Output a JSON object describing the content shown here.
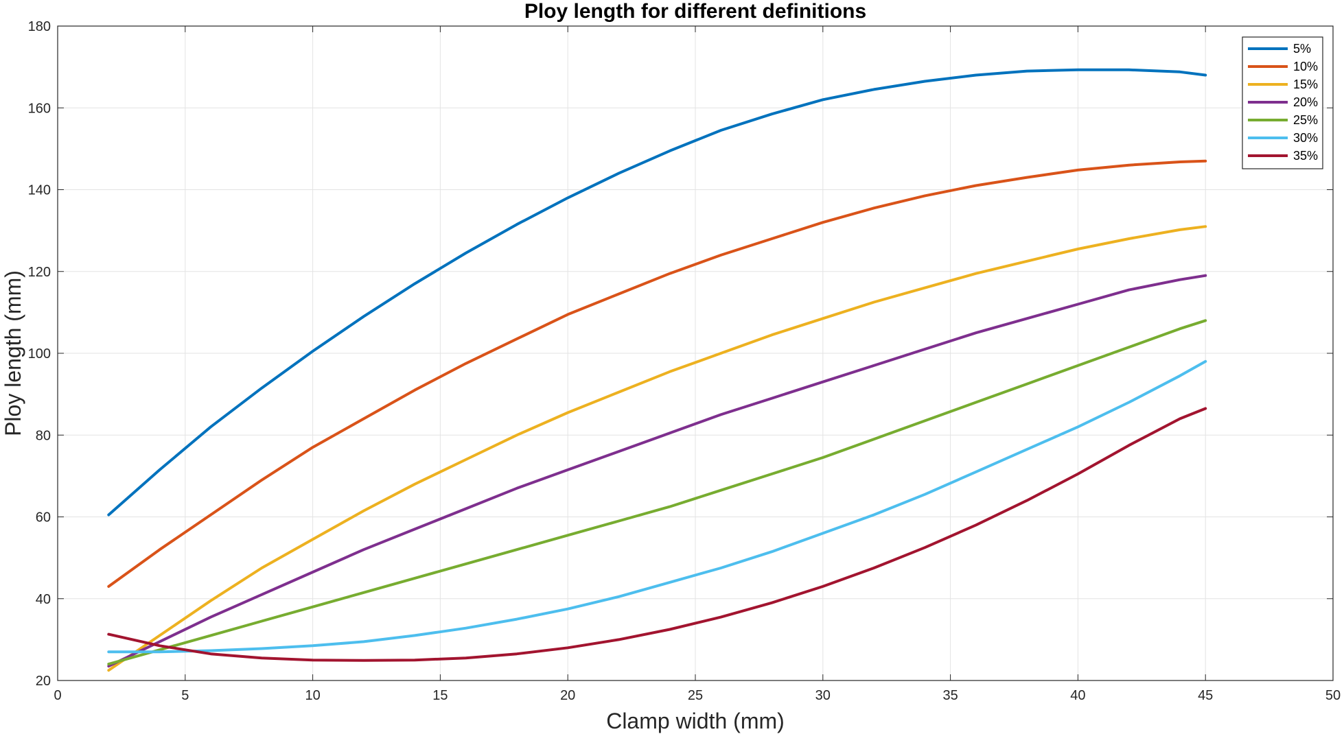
{
  "chart_data": {
    "type": "line",
    "title": "Ploy length for different definitions",
    "xlabel": "Clamp width (mm)",
    "ylabel": "Ploy length (mm)",
    "xlim": [
      0,
      50
    ],
    "ylim": [
      20,
      180
    ],
    "xticks": [
      0,
      5,
      10,
      15,
      20,
      25,
      30,
      35,
      40,
      45,
      50
    ],
    "yticks": [
      20,
      40,
      60,
      80,
      100,
      120,
      140,
      160,
      180
    ],
    "grid": true,
    "legend_position": "top-right",
    "x": [
      2,
      4,
      6,
      8,
      10,
      12,
      14,
      16,
      18,
      20,
      22,
      24,
      26,
      28,
      30,
      32,
      34,
      36,
      38,
      40,
      42,
      44,
      45
    ],
    "series": [
      {
        "name": "5%",
        "color": "#0072BD",
        "values": [
          60.5,
          71.5,
          82,
          91.5,
          100.5,
          109,
          117,
          124.5,
          131.5,
          138,
          144,
          149.5,
          154.5,
          158.5,
          162,
          164.5,
          166.5,
          168,
          169,
          169.3,
          169.3,
          168.8,
          168
        ]
      },
      {
        "name": "10%",
        "color": "#D95319",
        "values": [
          43,
          52,
          60.5,
          69,
          77,
          84,
          91,
          97.5,
          103.5,
          109.5,
          114.5,
          119.5,
          124,
          128,
          132,
          135.5,
          138.5,
          141,
          143,
          144.8,
          146,
          146.8,
          147
        ]
      },
      {
        "name": "15%",
        "color": "#EDB120",
        "values": [
          22.5,
          31,
          39.5,
          47.5,
          54.5,
          61.5,
          68,
          74,
          80,
          85.5,
          90.5,
          95.5,
          100,
          104.5,
          108.5,
          112.5,
          116,
          119.5,
          122.5,
          125.5,
          128,
          130.2,
          131
        ]
      },
      {
        "name": "20%",
        "color": "#7E2F8E",
        "values": [
          23.5,
          29.5,
          35.5,
          41,
          46.5,
          52,
          57,
          62,
          67,
          71.5,
          76,
          80.5,
          85,
          89,
          93,
          97,
          101,
          105,
          108.5,
          112,
          115.5,
          118,
          119
        ]
      },
      {
        "name": "25%",
        "color": "#77AC30",
        "values": [
          24,
          27.5,
          31,
          34.5,
          38,
          41.5,
          45,
          48.5,
          52,
          55.5,
          59,
          62.5,
          66.5,
          70.5,
          74.5,
          79,
          83.5,
          88,
          92.5,
          97,
          101.5,
          106,
          108
        ]
      },
      {
        "name": "30%",
        "color": "#4DBEEE",
        "values": [
          27,
          27,
          27.3,
          27.8,
          28.5,
          29.5,
          31,
          32.8,
          35,
          37.5,
          40.5,
          44,
          47.5,
          51.5,
          56,
          60.5,
          65.5,
          71,
          76.5,
          82,
          88,
          94.5,
          98
        ]
      },
      {
        "name": "35%",
        "color": "#A2142F",
        "values": [
          31.3,
          28.5,
          26.5,
          25.5,
          25,
          24.9,
          25,
          25.5,
          26.5,
          28,
          30,
          32.5,
          35.5,
          39,
          43,
          47.5,
          52.5,
          58,
          64,
          70.5,
          77.5,
          84,
          86.5
        ]
      }
    ]
  }
}
